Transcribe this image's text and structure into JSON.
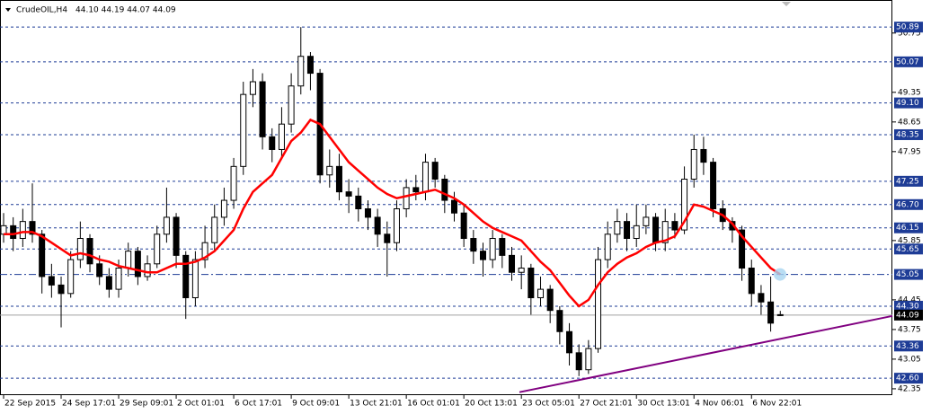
{
  "chart_data": {
    "type": "candlestick",
    "title": "CrudeOIL,H4",
    "ohlc_text": "44.10 44.19 44.07 44.09",
    "categories": [
      "22 Sep 2015",
      null,
      null,
      null,
      null,
      null,
      "24 Sep 17:01",
      null,
      null,
      null,
      null,
      null,
      "29 Sep 09:01",
      null,
      null,
      null,
      null,
      null,
      "2 Oct 01:01",
      null,
      null,
      null,
      null,
      null,
      "6 Oct 17:01",
      null,
      null,
      null,
      null,
      null,
      "9 Oct 09:01",
      null,
      null,
      null,
      null,
      null,
      "13 Oct 21:01",
      null,
      null,
      null,
      null,
      null,
      "16 Oct 01:01",
      null,
      null,
      null,
      null,
      null,
      "20 Oct 13:01",
      null,
      null,
      null,
      null,
      null,
      "23 Oct 05:01",
      null,
      null,
      null,
      null,
      null,
      "27 Oct 21:01",
      null,
      null,
      null,
      null,
      null,
      "30 Oct 13:01",
      null,
      null,
      null,
      null,
      null,
      "4 Nov 06:01",
      null,
      null,
      null,
      null,
      null,
      "6 Nov 22:01",
      null,
      null,
      null
    ],
    "open": [
      46.0,
      46.2,
      45.9,
      46.3,
      46.0,
      45.0,
      44.8,
      44.6,
      45.4,
      45.9,
      45.3,
      45.0,
      44.7,
      45.2,
      45.6,
      45.0,
      45.3,
      46.0,
      46.4,
      45.5,
      44.5,
      45.4,
      45.8,
      46.4,
      46.8,
      47.6,
      49.3,
      49.6,
      48.3,
      48.0,
      48.6,
      49.5,
      50.2,
      49.8,
      47.4,
      47.6,
      47.0,
      46.9,
      46.6,
      46.4,
      46.0,
      45.8,
      46.6,
      47.1,
      47.0,
      47.7,
      47.3,
      46.8,
      46.5,
      45.9,
      45.6,
      45.4,
      45.9,
      45.5,
      45.1,
      45.2,
      44.5,
      44.7,
      44.2,
      43.7,
      43.2,
      42.8,
      43.3,
      45.4,
      46.0,
      46.3,
      45.9,
      46.2,
      46.4,
      45.8,
      46.3,
      46.1,
      47.3,
      48.0,
      47.7,
      46.6,
      46.3,
      46.1,
      45.2,
      44.6,
      44.4,
      44.1
    ],
    "high": [
      46.5,
      46.4,
      46.6,
      47.2,
      46.1,
      45.3,
      45.0,
      45.6,
      46.3,
      46.0,
      45.5,
      45.2,
      45.4,
      45.8,
      45.7,
      45.5,
      46.2,
      47.1,
      46.5,
      45.6,
      45.6,
      46.2,
      46.7,
      47.1,
      47.8,
      49.6,
      49.9,
      49.8,
      48.5,
      49.0,
      49.8,
      50.89,
      50.3,
      49.9,
      48.0,
      47.9,
      47.3,
      47.1,
      46.8,
      46.6,
      46.3,
      46.8,
      47.3,
      47.4,
      47.9,
      47.8,
      47.4,
      47.0,
      46.7,
      46.1,
      45.8,
      46.1,
      46.0,
      45.7,
      45.5,
      45.3,
      45.0,
      44.8,
      44.3,
      43.9,
      43.4,
      43.5,
      45.7,
      46.3,
      46.6,
      46.5,
      46.7,
      46.7,
      46.5,
      46.6,
      46.5,
      47.6,
      48.35,
      48.3,
      47.8,
      46.8,
      46.4,
      46.2,
      45.4,
      44.8,
      45.0,
      44.19
    ],
    "low": [
      45.8,
      45.6,
      45.7,
      45.8,
      44.6,
      44.5,
      43.8,
      44.5,
      45.2,
      45.1,
      44.8,
      44.5,
      44.5,
      45.0,
      44.8,
      44.9,
      45.2,
      45.8,
      45.2,
      44.0,
      44.3,
      45.2,
      45.6,
      46.2,
      46.6,
      47.4,
      49.0,
      48.0,
      47.7,
      47.8,
      48.4,
      49.3,
      49.4,
      47.2,
      47.1,
      46.8,
      46.5,
      46.3,
      46.1,
      45.7,
      45.0,
      45.6,
      46.4,
      46.8,
      46.8,
      47.1,
      46.5,
      46.3,
      45.7,
      45.3,
      45.0,
      45.2,
      45.2,
      44.9,
      44.7,
      44.1,
      44.3,
      43.9,
      43.4,
      42.9,
      42.65,
      42.7,
      43.2,
      45.2,
      45.8,
      45.6,
      45.7,
      46.0,
      45.6,
      45.6,
      45.9,
      46.0,
      47.1,
      47.4,
      46.4,
      46.1,
      45.8,
      44.9,
      44.3,
      44.1,
      43.7,
      44.07
    ],
    "close": [
      46.2,
      45.9,
      46.3,
      46.0,
      45.0,
      44.8,
      44.6,
      45.4,
      45.9,
      45.3,
      45.0,
      44.7,
      45.2,
      45.6,
      45.0,
      45.3,
      46.0,
      46.4,
      45.5,
      44.5,
      45.4,
      45.8,
      46.4,
      46.8,
      47.6,
      49.3,
      49.6,
      48.3,
      48.0,
      48.6,
      49.5,
      50.2,
      49.8,
      47.4,
      47.6,
      47.0,
      46.9,
      46.6,
      46.4,
      46.0,
      45.8,
      46.6,
      47.1,
      47.0,
      47.7,
      47.3,
      46.8,
      46.5,
      45.9,
      45.6,
      45.4,
      45.9,
      45.5,
      45.1,
      45.2,
      44.5,
      44.7,
      44.2,
      43.7,
      43.2,
      42.8,
      43.3,
      45.4,
      46.0,
      46.3,
      45.9,
      46.2,
      46.4,
      45.8,
      46.3,
      46.1,
      47.3,
      48.0,
      47.7,
      46.6,
      46.3,
      46.1,
      45.2,
      44.6,
      44.4,
      43.9,
      44.09
    ],
    "moving_average": {
      "color": "#ff0000",
      "values": [
        46.0,
        46.0,
        46.05,
        46.05,
        45.95,
        45.8,
        45.65,
        45.5,
        45.55,
        45.5,
        45.4,
        45.35,
        45.25,
        45.2,
        45.15,
        45.1,
        45.1,
        45.2,
        45.3,
        45.3,
        45.35,
        45.45,
        45.6,
        45.85,
        46.1,
        46.6,
        47.0,
        47.2,
        47.4,
        47.8,
        48.2,
        48.4,
        48.7,
        48.6,
        48.3,
        48.0,
        47.7,
        47.5,
        47.3,
        47.1,
        46.95,
        46.85,
        46.9,
        46.95,
        47.0,
        47.05,
        46.95,
        46.85,
        46.7,
        46.5,
        46.3,
        46.15,
        46.05,
        45.95,
        45.85,
        45.6,
        45.35,
        45.15,
        44.85,
        44.55,
        44.3,
        44.45,
        44.8,
        45.1,
        45.3,
        45.45,
        45.55,
        45.7,
        45.8,
        45.85,
        45.95,
        46.3,
        46.7,
        46.65,
        46.55,
        46.45,
        46.25,
        45.95,
        45.7,
        45.45,
        45.2,
        45.05
      ]
    },
    "trendline": {
      "color": "#800080",
      "x": [
        53.8,
        92.7
      ],
      "y": [
        42.27,
        44.07
      ]
    },
    "ylim": [
      42.2,
      51.53
    ],
    "yticks": [
      50.75,
      49.35,
      48.65,
      47.95,
      45.85,
      44.45,
      43.75,
      43.05,
      42.35
    ],
    "levels": [
      50.89,
      50.07,
      {
        "value": 49.1,
        "label": "49.10"
      },
      48.35,
      47.25,
      {
        "value": 46.7,
        "label": "46.70"
      },
      46.15,
      45.65,
      45.05,
      {
        "value": 44.3,
        "label": "44.30"
      },
      43.36,
      {
        "value": 42.6,
        "label": "42.60"
      }
    ],
    "level_color": "#1e3c96",
    "current_price": 44.09
  }
}
